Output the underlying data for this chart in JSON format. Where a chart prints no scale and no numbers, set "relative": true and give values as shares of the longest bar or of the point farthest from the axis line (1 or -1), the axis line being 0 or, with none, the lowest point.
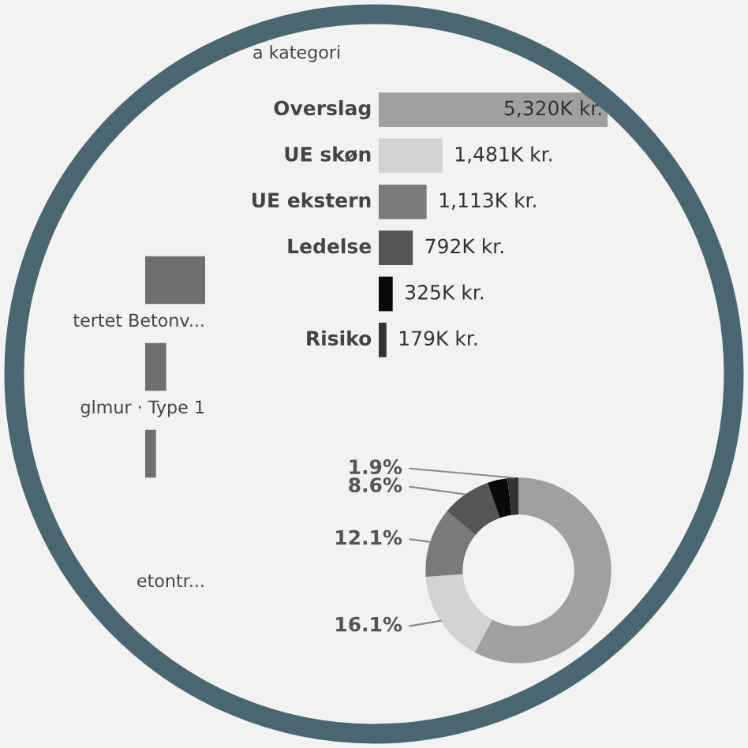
{
  "chart_data": [
    {
      "type": "bar",
      "orientation": "horizontal",
      "relative": true,
      "categories": [
        "tertet Betonv...",
        "glmur · Type 1",
        null,
        "etontr..."
      ],
      "values": [
        1,
        0.35,
        0.18,
        0
      ],
      "color": "#6e6e6e"
    },
    {
      "type": "bar",
      "orientation": "horizontal",
      "title": "a kategori",
      "categories": [
        "Overslag",
        "UE skøn",
        "UE ekstern",
        "Ledelse",
        null,
        "Risiko"
      ],
      "values": [
        5320,
        1481,
        1113,
        792,
        325,
        179
      ],
      "colors": [
        "#a0a0a0",
        "#d2d2d2",
        "#7a7a7a",
        "#555555",
        "#0a0a0a",
        "#333333"
      ],
      "value_labels": [
        "5,320K kr.",
        "1,481K kr.",
        "1,113K kr.",
        "792K kr.",
        "325K kr.",
        "179K kr."
      ]
    },
    {
      "type": "donut",
      "categories": [
        null,
        null,
        null,
        null,
        null,
        null
      ],
      "values": [
        57.8,
        16.1,
        12.1,
        8.6,
        3.5,
        1.9
      ],
      "colors": [
        "#a0a0a0",
        "#d2d2d2",
        "#7a7a7a",
        "#555555",
        "#0a0a0a",
        "#333333"
      ],
      "value_labels": [
        null,
        "16.1%",
        "12.1%",
        "8.6%",
        null,
        "1.9%"
      ]
    }
  ]
}
